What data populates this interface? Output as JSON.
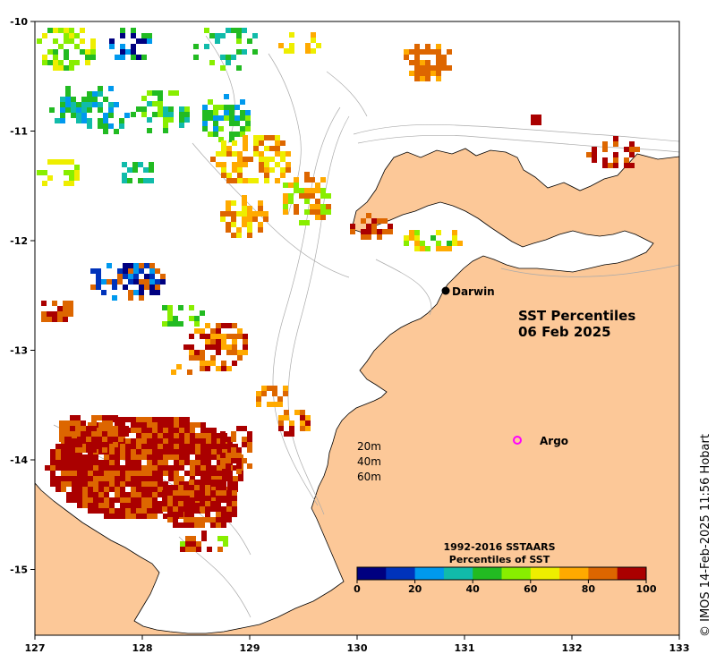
{
  "map": {
    "title_line1": "SST Percentiles",
    "title_line2": "06 Feb 2025",
    "credit": "© IMOS 14-Feb-2025 11:56 Hobart",
    "x_ticks": [
      "127",
      "128",
      "129",
      "130",
      "131",
      "132",
      "133"
    ],
    "y_ticks": [
      "-10",
      "-11",
      "-12",
      "-13",
      "-14",
      "-15"
    ],
    "lon_range": [
      127,
      133
    ],
    "lat_range": [
      -15.6,
      -10
    ],
    "places": [
      {
        "name": "Darwin",
        "lon": 130.83,
        "lat": -12.46
      },
      {
        "name": "Argo",
        "lon": 131.5,
        "lat": -13.8
      }
    ],
    "depth_labels": [
      "20m",
      "40m",
      "60m"
    ],
    "colorbar": {
      "title_line1": "1992-2016 SSTAARS",
      "title_line2": "Percentiles of SST",
      "tick_labels": [
        "0",
        "20",
        "40",
        "60",
        "80",
        "100"
      ],
      "colors": [
        "#000080",
        "#0033bb",
        "#0099ee",
        "#11bbaa",
        "#22bb22",
        "#88ee00",
        "#eeee00",
        "#ffaa00",
        "#dd6600",
        "#aa0000"
      ]
    },
    "colors": {
      "land": "#fcc898",
      "ocean": "#ffffff",
      "bathymetry": "#aaaaaa",
      "coastline": "#000000",
      "argo_marker": "#ff00ff"
    }
  }
}
